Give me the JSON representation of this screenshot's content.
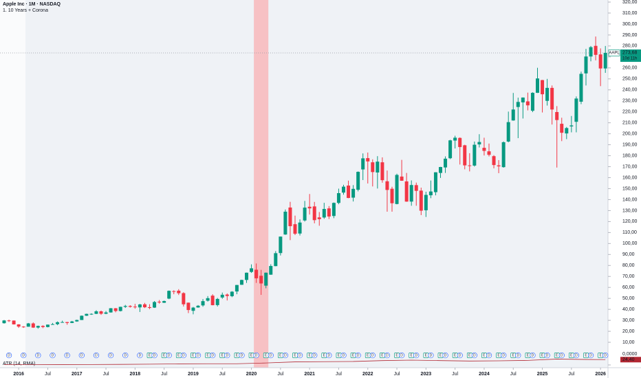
{
  "chart_data": {
    "type": "candlestick",
    "title": "Apple Inc · 1M · NASDAQ",
    "subtitle": "1. 10 Years + Corona",
    "up_color": "#089981",
    "down_color": "#f23645",
    "x": [
      "2015-10",
      "2015-11",
      "2015-12",
      "2016-01",
      "2016-02",
      "2016-03",
      "2016-04",
      "2016-05",
      "2016-06",
      "2016-07",
      "2016-08",
      "2016-09",
      "2016-10",
      "2016-11",
      "2016-12",
      "2017-01",
      "2017-02",
      "2017-03",
      "2017-04",
      "2017-05",
      "2017-06",
      "2017-07",
      "2017-08",
      "2017-09",
      "2017-10",
      "2017-11",
      "2017-12",
      "2018-01",
      "2018-02",
      "2018-03",
      "2018-04",
      "2018-05",
      "2018-06",
      "2018-07",
      "2018-08",
      "2018-09",
      "2018-10",
      "2018-11",
      "2018-12",
      "2019-01",
      "2019-02",
      "2019-03",
      "2019-04",
      "2019-05",
      "2019-06",
      "2019-07",
      "2019-08",
      "2019-09",
      "2019-10",
      "2019-11",
      "2019-12",
      "2020-01",
      "2020-02",
      "2020-03",
      "2020-04",
      "2020-05",
      "2020-06",
      "2020-07",
      "2020-08",
      "2020-09",
      "2020-10",
      "2020-11",
      "2020-12",
      "2021-01",
      "2021-02",
      "2021-03",
      "2021-04",
      "2021-05",
      "2021-06",
      "2021-07",
      "2021-08",
      "2021-09",
      "2021-10",
      "2021-11",
      "2021-12",
      "2022-01",
      "2022-02",
      "2022-03",
      "2022-04",
      "2022-05",
      "2022-06",
      "2022-07",
      "2022-08",
      "2022-09",
      "2022-10",
      "2022-11",
      "2022-12",
      "2023-01",
      "2023-02",
      "2023-03",
      "2023-04",
      "2023-05",
      "2023-06",
      "2023-07",
      "2023-08",
      "2023-09",
      "2023-10",
      "2023-11",
      "2023-12",
      "2024-01",
      "2024-02",
      "2024-03",
      "2024-04",
      "2024-05",
      "2024-06",
      "2024-07",
      "2024-08",
      "2024-09",
      "2024-10",
      "2024-11",
      "2024-12",
      "2025-01",
      "2025-02",
      "2025-03",
      "2025-04",
      "2025-05",
      "2025-06",
      "2025-07",
      "2025-08",
      "2025-09",
      "2025-10",
      "2025-11",
      "2025-12",
      "2026-01",
      "2026-02"
    ],
    "open": [
      27.4,
      29.9,
      29.8,
      26.3,
      24.3,
      24.2,
      27.2,
      23.4,
      24.9,
      23.9,
      26.1,
      26.5,
      28.3,
      28.4,
      27.6,
      29.0,
      30.3,
      34.2,
      35.9,
      35.9,
      38.2,
      36.0,
      37.2,
      41.0,
      38.5,
      42.3,
      43.1,
      42.5,
      41.8,
      44.6,
      42.0,
      41.6,
      47.0,
      46.0,
      49.8,
      56.6,
      57.0,
      54.8,
      46.1,
      38.7,
      41.7,
      43.6,
      47.9,
      52.5,
      43.9,
      50.8,
      53.5,
      52.0,
      56.3,
      62.4,
      66.8,
      74.1,
      76.1,
      70.6,
      61.6,
      71.6,
      79.4,
      91.3,
      108.2,
      132.8,
      117.6,
      109.1,
      121.0,
      133.5,
      133.8,
      123.8,
      123.7,
      132.0,
      125.1,
      137.0,
      146.4,
      152.8,
      141.8,
      148.98,
      167.5,
      177.8,
      174.0,
      164.7,
      174.0,
      156.7,
      149.9,
      136.0,
      161.0,
      156.6,
      138.2,
      153.2,
      148.2,
      130.3,
      143.97,
      146.8,
      164.3,
      169.3,
      177.7,
      193.8,
      196.2,
      189.5,
      171.2,
      171.0,
      190.3,
      187.2,
      183.99,
      179.6,
      171.2,
      169.6,
      192.9,
      212.1,
      224.4,
      228.6,
      229.5,
      220.97,
      237.3,
      248.9,
      229.99,
      241.8,
      219.8,
      209.1,
      200.3,
      206.7,
      210.9,
      229.2,
      255.0,
      270.4,
      280.1,
      272.3,
      259.5
    ],
    "high": [
      30.3,
      30.6,
      29.9,
      26.5,
      24.7,
      27.6,
      28.1,
      25.2,
      25.5,
      26.1,
      27.6,
      29.0,
      29.7,
      28.6,
      29.5,
      30.6,
      34.4,
      36.1,
      36.4,
      39.2,
      38.9,
      38.5,
      41.2,
      41.2,
      42.4,
      44.1,
      43.8,
      45.0,
      45.0,
      45.9,
      44.7,
      47.6,
      48.5,
      48.0,
      57.2,
      57.4,
      58.4,
      55.6,
      46.2,
      42.2,
      43.9,
      49.4,
      52.1,
      53.8,
      50.4,
      55.3,
      54.5,
      56.6,
      62.3,
      67.0,
      73.5,
      81.0,
      81.8,
      76.0,
      73.6,
      81.1,
      93.1,
      106.4,
      131.0,
      137.98,
      125.4,
      121.99,
      138.8,
      145.1,
      137.9,
      128.7,
      137.1,
      134.1,
      137.4,
      150.0,
      153.5,
      157.3,
      153.2,
      165.7,
      182.1,
      182.9,
      176.7,
      179.6,
      178.5,
      166.5,
      151.7,
      163.6,
      176.2,
      164.3,
      157.5,
      155.5,
      150.9,
      147.2,
      157.4,
      165.0,
      169.9,
      179.4,
      194.5,
      198.2,
      196.7,
      189.98,
      182.3,
      192.9,
      199.6,
      196.4,
      191.1,
      180.5,
      176.0,
      193.0,
      220.2,
      237.2,
      232.9,
      233.1,
      237.5,
      237.8,
      260.1,
      249.1,
      250.0,
      244.0,
      225.2,
      214.6,
      206.2,
      216.2,
      234.0,
      256.6,
      277.3,
      280.0,
      288.6,
      277.8,
      280.0
    ],
    "low": [
      27.0,
      28.5,
      26.2,
      23.1,
      23.1,
      24.1,
      23.1,
      22.4,
      22.9,
      23.6,
      26.0,
      25.6,
      28.0,
      26.0,
      27.5,
      28.7,
      30.3,
      34.0,
      35.0,
      35.7,
      35.0,
      35.6,
      37.0,
      37.3,
      38.1,
      41.3,
      41.6,
      40.6,
      37.6,
      41.2,
      40.2,
      41.3,
      45.2,
      45.9,
      49.3,
      53.8,
      53.1,
      42.6,
      36.6,
      35.5,
      41.5,
      42.4,
      47.1,
      43.7,
      42.6,
      49.6,
      48.1,
      51.1,
      53.8,
      62.3,
      64.1,
      73.2,
      64.1,
      53.2,
      59.2,
      71.5,
      79.3,
      89.1,
      107.9,
      103.1,
      107.7,
      107.3,
      120.0,
      126.4,
      118.4,
      116.2,
      122.5,
      122.3,
      123.1,
      135.8,
      144.5,
      141.3,
      138.3,
      147.5,
      157.8,
      154.7,
      152.0,
      150.1,
      155.4,
      129.0,
      129.0,
      135.7,
      157.1,
      138.0,
      134.4,
      134.4,
      125.9,
      124.2,
      141.3,
      143.9,
      159.8,
      164.3,
      176.9,
      186.6,
      171.96,
      167.6,
      165.7,
      170.1,
      187.5,
      180.2,
      179.3,
      168.5,
      164.1,
      169.1,
      192.2,
      211.9,
      196.0,
      213.9,
      221.3,
      219.7,
      237.2,
      219.4,
      225.7,
      208.4,
      169.2,
      193.3,
      195.1,
      201.3,
      201.3,
      226.97,
      244.0,
      266.0,
      266.9,
      243.4,
      255.5
    ],
    "close": [
      29.9,
      29.8,
      26.3,
      24.3,
      24.2,
      27.2,
      23.4,
      24.9,
      23.9,
      26.1,
      26.5,
      28.3,
      28.4,
      27.6,
      29.0,
      30.3,
      34.2,
      35.9,
      35.9,
      38.2,
      36.0,
      37.2,
      41.0,
      38.5,
      42.3,
      43.1,
      42.3,
      41.9,
      44.5,
      41.9,
      41.3,
      46.7,
      46.3,
      47.6,
      56.9,
      56.4,
      54.7,
      44.6,
      39.4,
      41.6,
      43.3,
      47.5,
      50.2,
      43.8,
      49.5,
      53.3,
      52.2,
      56.1,
      62.2,
      66.8,
      73.4,
      77.4,
      68.3,
      63.6,
      73.4,
      79.5,
      91.2,
      106.3,
      129.0,
      115.8,
      108.9,
      119.1,
      132.7,
      132.0,
      121.3,
      122.2,
      131.5,
      124.6,
      137.0,
      145.9,
      151.8,
      141.5,
      149.8,
      165.3,
      177.6,
      174.8,
      165.1,
      174.6,
      157.7,
      148.8,
      136.7,
      162.5,
      157.2,
      138.2,
      153.3,
      148.0,
      129.9,
      144.3,
      147.4,
      164.9,
      169.7,
      177.3,
      194.0,
      196.4,
      187.9,
      171.2,
      170.8,
      190.0,
      192.5,
      184.4,
      180.8,
      171.5,
      170.3,
      192.3,
      210.6,
      222.1,
      229.0,
      233.0,
      225.9,
      237.3,
      250.4,
      236.0,
      241.8,
      222.1,
      212.5,
      200.9,
      205.2,
      207.6,
      232.1,
      254.6,
      270.4,
      278.9,
      271.9,
      259.5,
      273.68
    ],
    "ylim": [
      0,
      320
    ],
    "yticks": [
      {
        "value": 10,
        "label": "10,00"
      },
      {
        "value": 20,
        "label": "20,00"
      },
      {
        "value": 30,
        "label": "30,00"
      },
      {
        "value": 40,
        "label": "40,00"
      },
      {
        "value": 50,
        "label": "50,00"
      },
      {
        "value": 60,
        "label": "60,00"
      },
      {
        "value": 70,
        "label": "70,00"
      },
      {
        "value": 80,
        "label": "80,00"
      },
      {
        "value": 90,
        "label": "90,00"
      },
      {
        "value": 100,
        "label": "100,00"
      },
      {
        "value": 110,
        "label": "110,00"
      },
      {
        "value": 120,
        "label": "120,00"
      },
      {
        "value": 130,
        "label": "130,00"
      },
      {
        "value": 140,
        "label": "140,00"
      },
      {
        "value": 150,
        "label": "150,00"
      },
      {
        "value": 160,
        "label": "160,00"
      },
      {
        "value": 170,
        "label": "170,00"
      },
      {
        "value": 180,
        "label": "180,00"
      },
      {
        "value": 190,
        "label": "190,00"
      },
      {
        "value": 200,
        "label": "200,00"
      },
      {
        "value": 210,
        "label": "210,00"
      },
      {
        "value": 220,
        "label": "220,00"
      },
      {
        "value": 230,
        "label": "230,00"
      },
      {
        "value": 240,
        "label": "240,00"
      },
      {
        "value": 250,
        "label": "250,00"
      },
      {
        "value": 260,
        "label": "260,00"
      },
      {
        "value": 270,
        "label": "270,00"
      },
      {
        "value": 280,
        "label": "280,00"
      },
      {
        "value": 290,
        "label": "290,00"
      },
      {
        "value": 300,
        "label": "300,00"
      },
      {
        "value": 310,
        "label": "310,00"
      },
      {
        "value": 320,
        "label": "320,00"
      }
    ],
    "xticks": [
      {
        "value": "2016-01",
        "label": "2016"
      },
      {
        "value": "2016-07",
        "label": "Jul"
      },
      {
        "value": "2017-01",
        "label": "2017"
      },
      {
        "value": "2017-07",
        "label": "Jul"
      },
      {
        "value": "2018-01",
        "label": "2018"
      },
      {
        "value": "2018-07",
        "label": "Jul"
      },
      {
        "value": "2019-01",
        "label": "2019"
      },
      {
        "value": "2019-07",
        "label": "Jul"
      },
      {
        "value": "2020-01",
        "label": "2020"
      },
      {
        "value": "2020-07",
        "label": "Jul"
      },
      {
        "value": "2021-01",
        "label": "2021"
      },
      {
        "value": "2021-07",
        "label": "Jul"
      },
      {
        "value": "2022-01",
        "label": "2022"
      },
      {
        "value": "2022-07",
        "label": "Jul"
      },
      {
        "value": "2023-01",
        "label": "2023"
      },
      {
        "value": "2023-07",
        "label": "Jul"
      },
      {
        "value": "2024-01",
        "label": "2024"
      },
      {
        "value": "2024-07",
        "label": "Jul"
      },
      {
        "value": "2025-01",
        "label": "2025"
      },
      {
        "value": "2025-07",
        "label": "Jul"
      },
      {
        "value": "2026-01",
        "label": "2026"
      }
    ],
    "highlight": {
      "from": "2020-02",
      "to": "2020-04",
      "color": "#f7c1c4"
    },
    "last_price": 273.68,
    "price_label": "273,68",
    "symbol": "AAPL",
    "countdown": "10d 11h",
    "dividends": {
      "label": "D",
      "color": "#2962ff",
      "dates": [
        "2015-11",
        "2016-02",
        "2016-05",
        "2016-08",
        "2016-11",
        "2017-02",
        "2017-05",
        "2017-08",
        "2017-11",
        "2018-02",
        "2018-05",
        "2018-08",
        "2018-11",
        "2019-02",
        "2019-05",
        "2019-08",
        "2019-11",
        "2020-02",
        "2020-05",
        "2020-08",
        "2020-11",
        "2021-02",
        "2021-05",
        "2021-08",
        "2021-11",
        "2022-02",
        "2022-05",
        "2022-08",
        "2022-11",
        "2023-02",
        "2023-05",
        "2023-08",
        "2023-11",
        "2024-02",
        "2024-05",
        "2024-08",
        "2024-11",
        "2025-02",
        "2025-05",
        "2025-08",
        "2025-11",
        "2026-02"
      ]
    },
    "earnings": {
      "label": "E",
      "color": "#089981",
      "dates": [
        "2018-04",
        "2018-07",
        "2018-10",
        "2019-01",
        "2019-04",
        "2019-07",
        "2019-10",
        "2020-01",
        "2020-04",
        "2020-07",
        "2020-10",
        "2021-01",
        "2021-04",
        "2021-07",
        "2021-10",
        "2022-01",
        "2022-04",
        "2022-07",
        "2022-10",
        "2023-01",
        "2023-04",
        "2023-07",
        "2023-10",
        "2024-01",
        "2024-04",
        "2024-07",
        "2024-10",
        "2025-01",
        "2025-04",
        "2025-07",
        "2025-10",
        "2026-01"
      ]
    },
    "atr": {
      "name": "ATR (14, RMA)",
      "color": "#b22833",
      "x": [
        "2015-10",
        "2016-04",
        "2016-10",
        "2017-04",
        "2017-10",
        "2018-04",
        "2018-10",
        "2019-04",
        "2019-10",
        "2020-04",
        "2020-10",
        "2021-04",
        "2021-10",
        "2022-04",
        "2022-10",
        "2023-04",
        "2023-10",
        "2024-04",
        "2024-10",
        "2025-04",
        "2025-10",
        "2026-02"
      ],
      "values": [
        2.0,
        1.9,
        1.8,
        2.0,
        2.5,
        3.5,
        5.0,
        5.5,
        5.5,
        9,
        14,
        15,
        16,
        20,
        22,
        20,
        18,
        19,
        21,
        27,
        25,
        24.4
      ],
      "last_label": "24,40",
      "ylim": [
        0,
        60
      ],
      "yticks": [
        {
          "value": 0,
          "label": "0,0000"
        }
      ]
    }
  }
}
